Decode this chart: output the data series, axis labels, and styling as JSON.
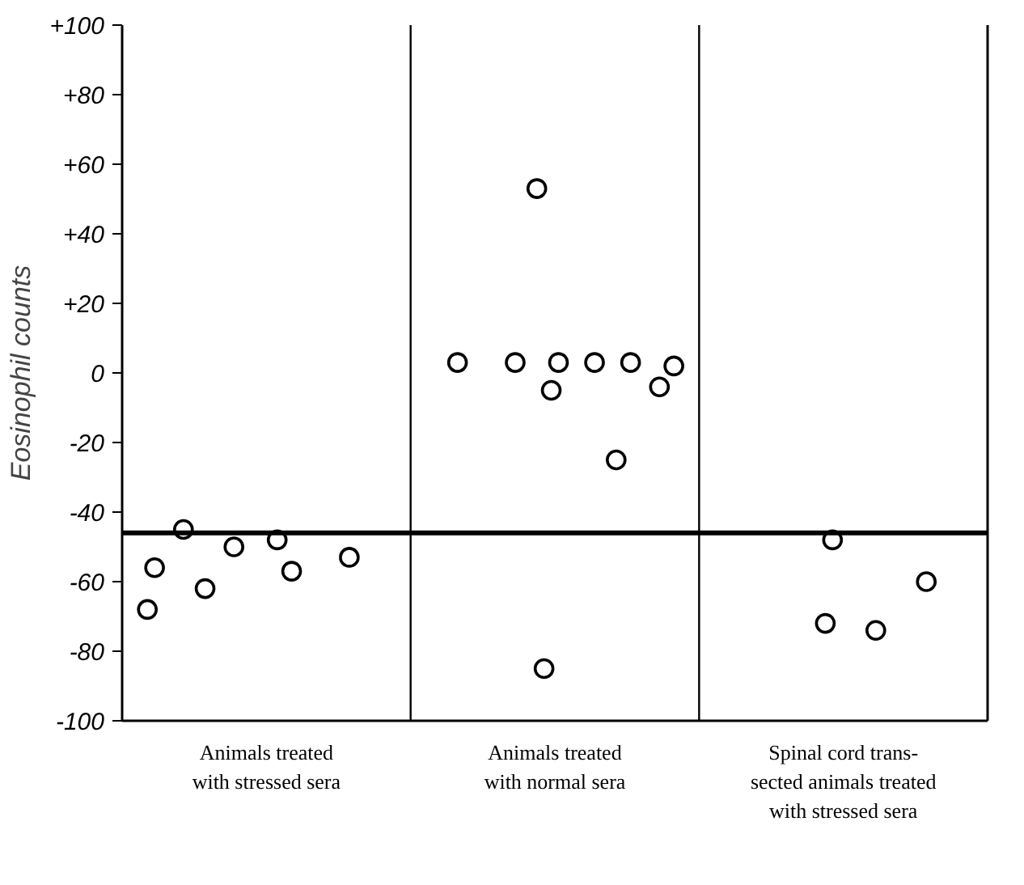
{
  "chart_data": {
    "type": "scatter",
    "ylabel": "Eosinophil counts",
    "categories": [
      null,
      null,
      null,
      null,
      null,
      null,
      null,
      null,
      null,
      null,
      null,
      null,
      null,
      null,
      null,
      null,
      null,
      null,
      null,
      null,
      null,
      null,
      null,
      null,
      null,
      null,
      null,
      null,
      null,
      null,
      null,
      null,
      null,
      null,
      null,
      null,
      null,
      null,
      null,
      null,
      null,
      null,
      null,
      null,
      null,
      null,
      null,
      null,
      null,
      null,
      null,
      null,
      null,
      null,
      null,
      null,
      null,
      null,
      null,
      null,
      null,
      null,
      null,
      null,
      null,
      null,
      null,
      null,
      null,
      null,
      null,
      null,
      null,
      null,
      null,
      null,
      null,
      null,
      null,
      null,
      null,
      null,
      null,
      null,
      null,
      null,
      null,
      null,
      null,
      null,
      null,
      null,
      null,
      null,
      null,
      null,
      null,
      null,
      null,
      null,
      null,
      null,
      null,
      null,
      null,
      null,
      null,
      null,
      null,
      null,
      null,
      null,
      null,
      null,
      null,
      null,
      null,
      null,
      null,
      null
    ],
    "ylim": [
      -100,
      100
    ],
    "yticks": [
      {
        "value": 100,
        "label": "+100"
      },
      {
        "value": 80,
        "label": "+80"
      },
      {
        "value": 60,
        "label": "+60"
      },
      {
        "value": 40,
        "label": "+40"
      },
      {
        "value": 20,
        "label": "+20"
      },
      0,
      -20,
      -40,
      -60,
      -80,
      -100
    ],
    "series": [
      {
        "color": "#000000",
        "values": [
          null,
          null,
          null,
          -68,
          -56,
          null,
          null,
          null,
          -45,
          null,
          null,
          -62,
          null,
          null,
          null,
          -50,
          null,
          null,
          null,
          null,
          null,
          -48,
          null,
          -57,
          null,
          null,
          null,
          null,
          null,
          null,
          null,
          -53,
          null,
          null,
          null,
          null,
          null,
          null,
          null,
          null,
          null,
          null,
          null,
          null,
          null,
          null,
          3,
          null,
          null,
          null,
          null,
          null,
          null,
          null,
          3,
          null,
          null,
          53,
          -85,
          -5,
          3,
          null,
          null,
          null,
          null,
          3,
          null,
          null,
          -25,
          null,
          3,
          null,
          null,
          null,
          -4,
          null,
          2,
          null,
          null,
          null,
          null,
          null,
          null,
          null,
          null,
          null,
          null,
          null,
          null,
          null,
          null,
          null,
          null,
          null,
          null,
          null,
          null,
          -72,
          -48,
          null,
          null,
          null,
          null,
          null,
          -74,
          null,
          null,
          null,
          null,
          null,
          null,
          -60,
          null,
          null,
          null,
          null,
          null,
          null,
          null,
          null
        ]
      }
    ],
    "ref_lines": [
      {
        "axis": "y",
        "value": -46,
        "color": "#000000"
      }
    ],
    "annotations": [
      "Animals treated\nwith stressed sera",
      "Animals treated\nwith normal sera",
      "Spinal cord trans-\nsected animals treated\nwith stressed sera"
    ],
    "marker": "circle"
  }
}
